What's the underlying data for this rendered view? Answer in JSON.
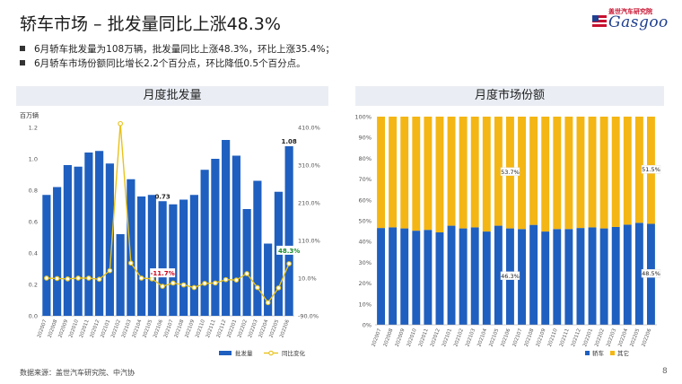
{
  "header": {
    "title": "轿车市场 – 批发量同比上涨48.3%",
    "logo_top": "盖世汽车研究院",
    "logo_main": "Gasgoo"
  },
  "bullets": [
    "6月轿车批发量为108万辆，批发量同比上涨48.3%，环比上涨35.4%；",
    "6月轿车市场份额同比增长2.2个百分点，环比降低0.5个百分点。"
  ],
  "footer": {
    "source": "数据来源：盖世汽车研究院、中汽协",
    "page": "8"
  },
  "colors": {
    "bar_blue": "#1f5fbf",
    "line_yellow": "#e8c21c",
    "share_yellow": "#f4b614"
  },
  "chart_data": [
    {
      "type": "bar",
      "title": "月度批发量",
      "unit_label": "百万辆",
      "categories": [
        "202007",
        "202008",
        "202009",
        "202010",
        "202011",
        "202012",
        "202101",
        "202102",
        "202103",
        "202104",
        "202105",
        "202106",
        "202107",
        "202108",
        "202109",
        "202110",
        "202111",
        "202112",
        "202201",
        "202202",
        "202203",
        "202204",
        "202205",
        "202206"
      ],
      "series": [
        {
          "name": "批发量",
          "type": "bar",
          "axis": "left",
          "values": [
            0.77,
            0.82,
            0.96,
            0.95,
            1.04,
            1.05,
            0.97,
            0.52,
            0.87,
            0.76,
            0.77,
            0.73,
            0.71,
            0.74,
            0.77,
            0.93,
            1.0,
            1.12,
            1.02,
            0.68,
            0.86,
            0.46,
            0.79,
            1.08
          ]
        },
        {
          "name": "同比变化",
          "type": "line",
          "axis": "right",
          "values": [
            10,
            9,
            8,
            10,
            10,
            7,
            30,
            420,
            50,
            10,
            8,
            -11.7,
            -3,
            -8,
            -15,
            -4,
            -3,
            6,
            5,
            22,
            -15,
            -55,
            -16,
            48.3
          ]
        }
      ],
      "ylim_left": [
        0,
        1.2
      ],
      "ylim_right": [
        -90,
        410
      ],
      "yticks_left": [
        "0.0",
        "0.2",
        "0.4",
        "0.6",
        "0.8",
        "1.0",
        "1.2"
      ],
      "yticks_right": [
        "-90.0%",
        "10.0%",
        "110.0%",
        "210.0%",
        "310.0%",
        "410.0%"
      ],
      "data_labels": [
        {
          "index": 11,
          "series": "批发量",
          "text": "0.73"
        },
        {
          "index": 23,
          "series": "批发量",
          "text": "1.08"
        },
        {
          "index": 11,
          "series": "同比变化",
          "text": "-11.7%"
        },
        {
          "index": 23,
          "series": "同比变化",
          "text": "48.3%"
        }
      ],
      "legend": [
        "批发量",
        "同比变化"
      ],
      "legend_position": "bottom"
    },
    {
      "type": "bar",
      "stacked": true,
      "title": "月度市场份额",
      "categories": [
        "202007",
        "202008",
        "202009",
        "202010",
        "202011",
        "202012",
        "202101",
        "202102",
        "202103",
        "202104",
        "202105",
        "202106",
        "202107",
        "202108",
        "202109",
        "202110",
        "202111",
        "202112",
        "202201",
        "202202",
        "202203",
        "202204",
        "202205",
        "202206"
      ],
      "series": [
        {
          "name": "轿车",
          "values": [
            46.5,
            46.8,
            46.3,
            45.2,
            45.6,
            44.4,
            47.6,
            46.3,
            46.8,
            44.8,
            47.6,
            46.3,
            46.0,
            48.0,
            44.8,
            46.0,
            46.0,
            46.5,
            46.8,
            46.3,
            47.0,
            48.1,
            49.0,
            48.5
          ]
        },
        {
          "name": "其它",
          "values": [
            53.5,
            53.2,
            53.7,
            54.8,
            54.4,
            55.6,
            52.4,
            53.7,
            53.2,
            55.2,
            52.4,
            53.7,
            54.0,
            52.0,
            55.2,
            54.0,
            54.0,
            53.5,
            53.2,
            53.7,
            53.0,
            51.9,
            51.0,
            51.5
          ]
        }
      ],
      "ylim": [
        0,
        100
      ],
      "yticks": [
        "0%",
        "10%",
        "20%",
        "30%",
        "40%",
        "50%",
        "60%",
        "70%",
        "80%",
        "90%",
        "100%"
      ],
      "data_labels": [
        {
          "index": 11,
          "series": "轿车",
          "text": "46.3%"
        },
        {
          "index": 11,
          "series": "其它",
          "text": "53.7%"
        },
        {
          "index": 23,
          "series": "轿车",
          "text": "48.5%"
        },
        {
          "index": 23,
          "series": "其它",
          "text": "51.5%"
        }
      ],
      "legend": [
        "轿车",
        "其它"
      ],
      "legend_position": "bottom"
    }
  ]
}
